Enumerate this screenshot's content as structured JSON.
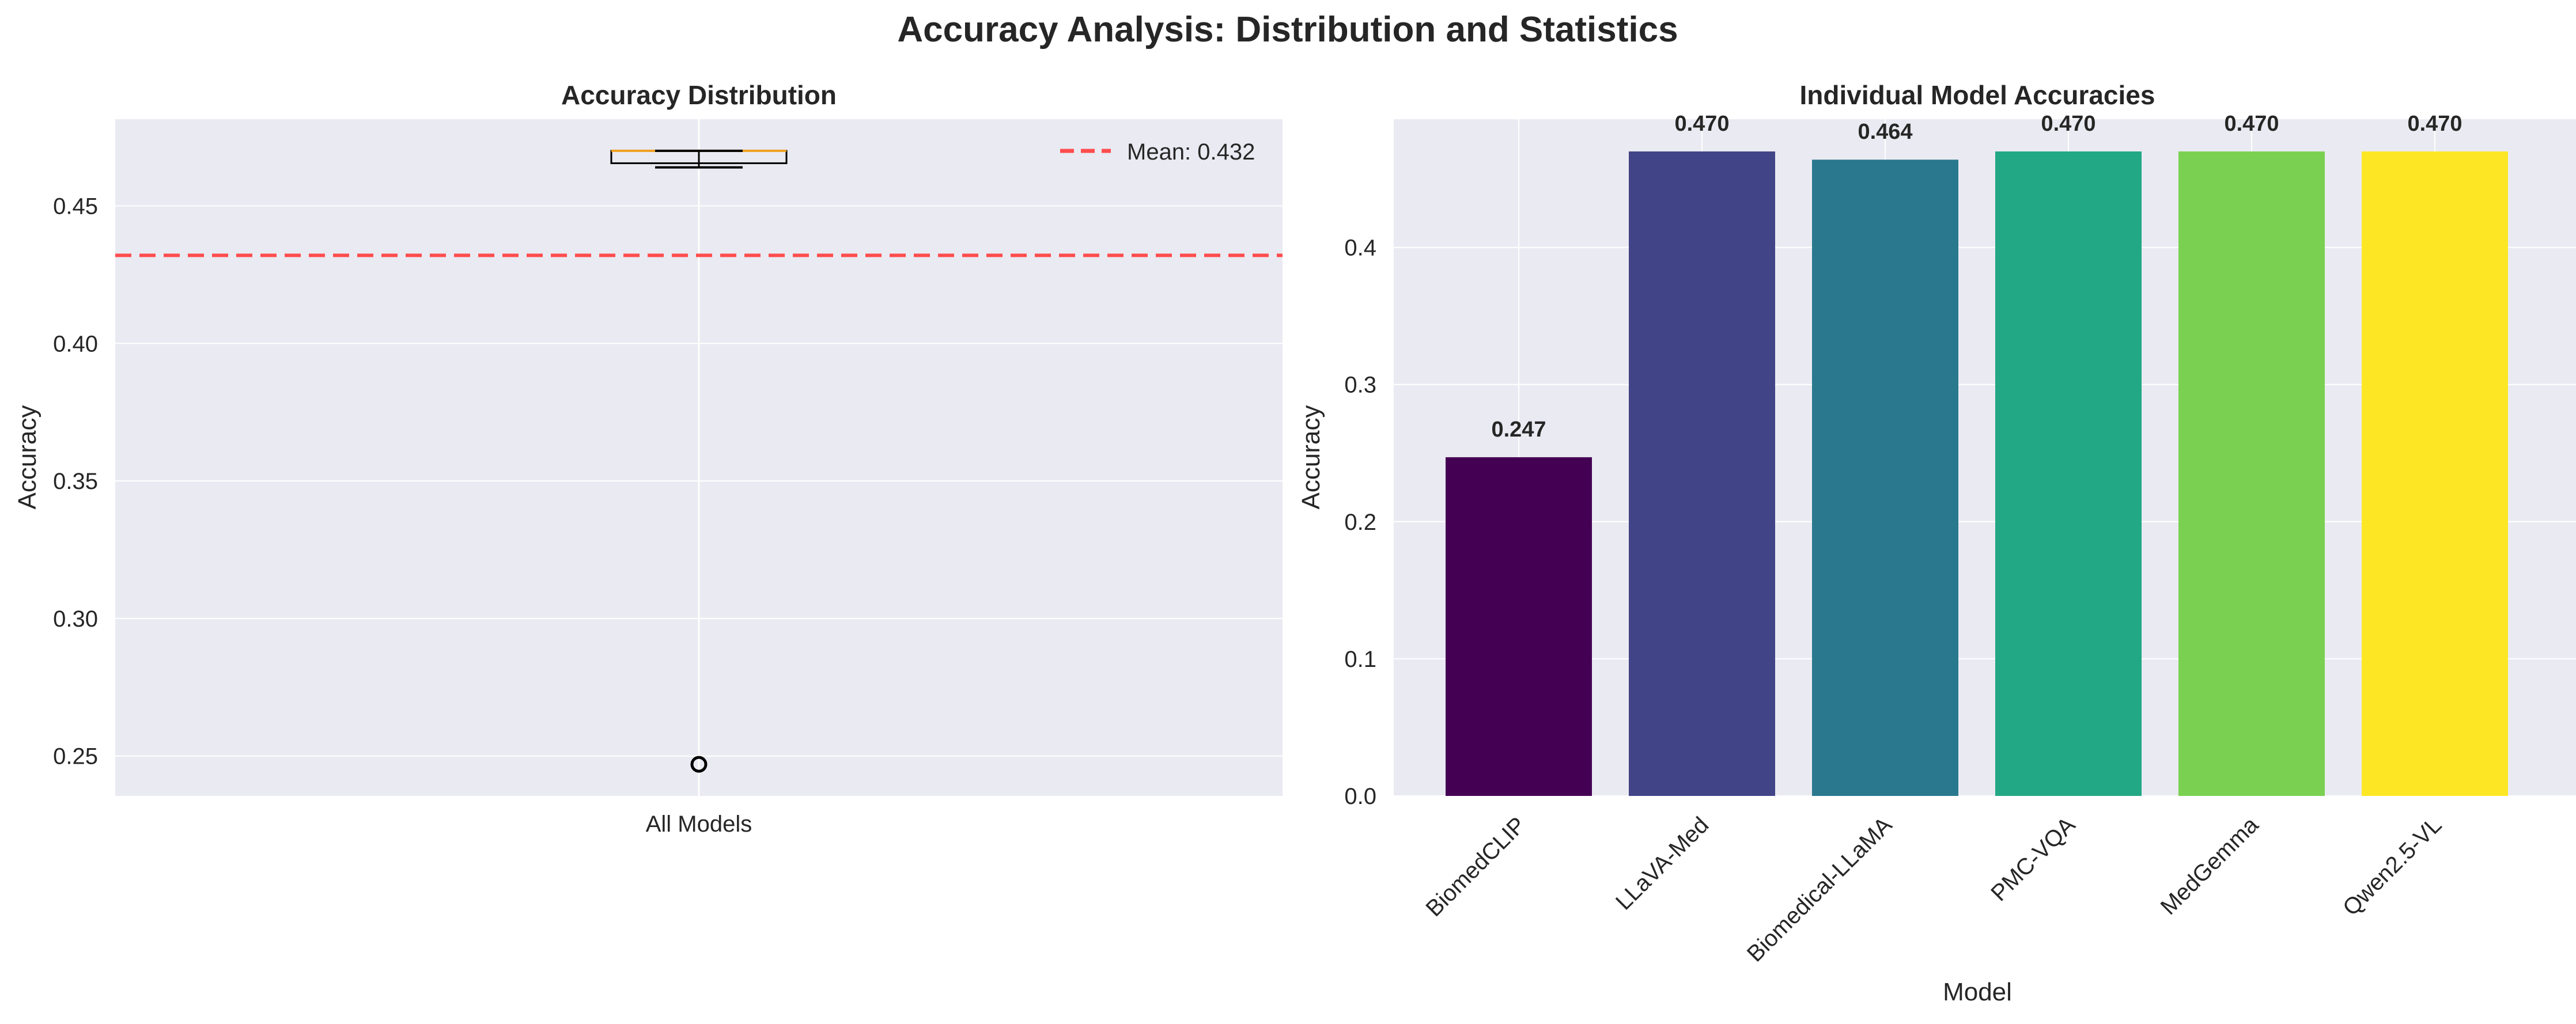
{
  "figure_title": "Accuracy Analysis: Distribution and Statistics",
  "colors": {
    "plot_background": "#eaeaf2",
    "grid": "#ffffff",
    "mean_line": "#ff4d4d",
    "box_edge": "#000000",
    "median_line": "#f0a020"
  },
  "chart_data": [
    {
      "type": "box",
      "title": "Accuracy Distribution",
      "xlabel": "",
      "ylabel": "Accuracy",
      "categories": [
        "All Models"
      ],
      "values": [
        0.247,
        0.464,
        0.47,
        0.47,
        0.47,
        0.47
      ],
      "box": {
        "whisker_low": 0.464,
        "q1": 0.4655,
        "median": 0.47,
        "q3": 0.47,
        "whisker_high": 0.47,
        "outliers": [
          0.247
        ]
      },
      "mean": 0.432,
      "legend": [
        {
          "label": "Mean: 0.432",
          "style": "dashed",
          "color": "#ff4d4d"
        }
      ],
      "legend_position": "top-right",
      "ylim": [
        0.2355,
        0.4815
      ],
      "yticks": [
        0.25,
        0.3,
        0.35,
        0.4,
        0.45
      ],
      "ytick_labels": [
        "0.25",
        "0.30",
        "0.35",
        "0.40",
        "0.45"
      ],
      "grid": true
    },
    {
      "type": "bar",
      "title": "Individual Model Accuracies",
      "xlabel": "Model",
      "ylabel": "Accuracy",
      "categories": [
        "BiomedCLIP",
        "LLaVA-Med",
        "Biomedical-LLaMA",
        "PMC-VQA",
        "MedGemma",
        "Qwen2.5-VL"
      ],
      "values": [
        0.247,
        0.47,
        0.464,
        0.47,
        0.47,
        0.47
      ],
      "data_labels": [
        "0.247",
        "0.470",
        "0.464",
        "0.470",
        "0.470",
        "0.470"
      ],
      "bar_colors": [
        "#440154",
        "#414487",
        "#2a788e",
        "#22a884",
        "#7ad151",
        "#fde725"
      ],
      "ylim": [
        0,
        0.4935
      ],
      "yticks": [
        0.0,
        0.1,
        0.2,
        0.3,
        0.4
      ],
      "ytick_labels": [
        "0.0",
        "0.1",
        "0.2",
        "0.3",
        "0.4"
      ],
      "grid": true
    }
  ]
}
